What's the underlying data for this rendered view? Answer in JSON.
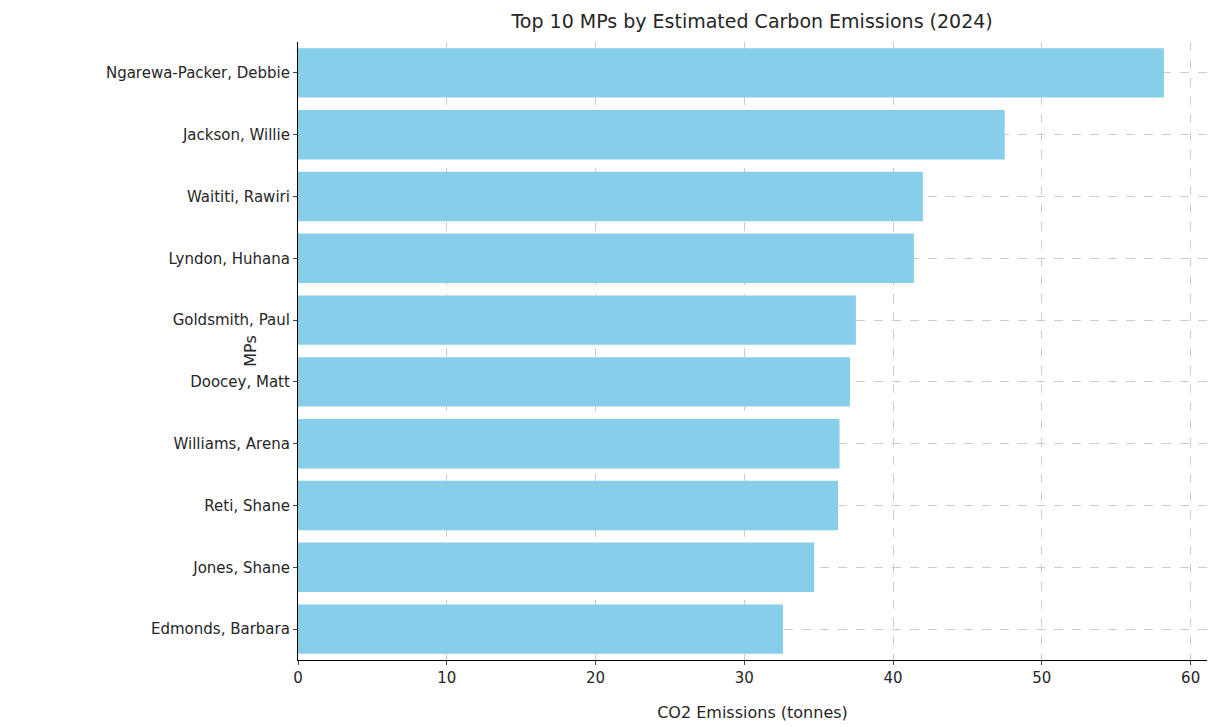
{
  "chart_data": {
    "type": "bar",
    "orientation": "horizontal",
    "title": "Top 10 MPs by Estimated Carbon Emissions (2024)",
    "x_label": "CO2 Emissions (tonnes)",
    "y_label": "MPs",
    "categories": [
      "Ngarewa-Packer, Debbie",
      "Jackson, Willie",
      "Waititi, Rawiri",
      "Lyndon, Huhana",
      "Goldsmith, Paul",
      "Doocey, Matt",
      "Williams, Arena",
      "Reti, Shane",
      "Jones, Shane",
      "Edmonds, Barbara"
    ],
    "values": [
      58.2,
      47.5,
      42.0,
      41.4,
      37.5,
      37.1,
      36.4,
      36.3,
      34.7,
      32.6
    ],
    "color": "#87ceeb",
    "xlim": [
      0,
      61.1
    ],
    "xticks": [
      0,
      10,
      20,
      30,
      40,
      50,
      60
    ],
    "grid": true
  }
}
